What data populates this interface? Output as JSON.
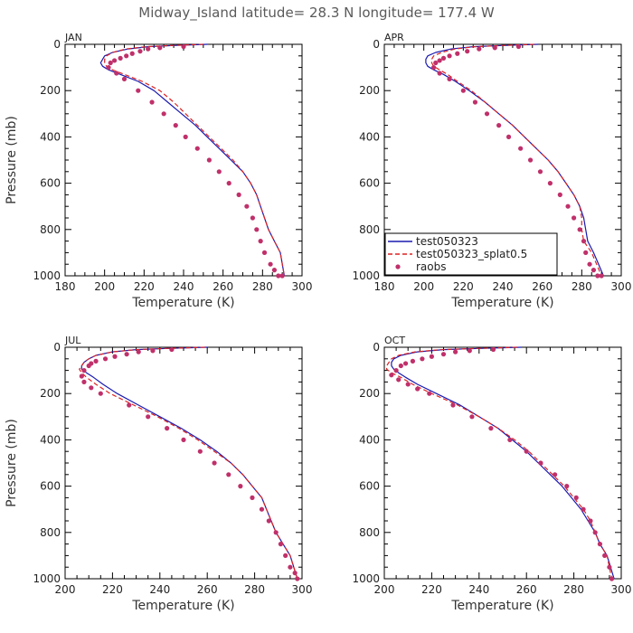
{
  "title": "Midway_Island   latitude= 28.3 N longitude= 177.4 W",
  "legend": {
    "items": [
      {
        "label": "test050323",
        "style": "line",
        "color": "#1a1ab0"
      },
      {
        "label": "test050323_splat0.5",
        "style": "dash",
        "color": "#dd2222"
      },
      {
        "label": "raobs",
        "style": "dot",
        "color": "#c0306a"
      }
    ]
  },
  "chart_data": [
    {
      "type": "line",
      "panel": "JAN",
      "xlabel": "Temperature (K)",
      "ylabel": "Pressure (mb)",
      "xlim": [
        180,
        300
      ],
      "ylim": [
        1000,
        0
      ],
      "xticks": [
        180,
        200,
        220,
        240,
        260,
        280,
        300
      ],
      "yticks": [
        0,
        200,
        400,
        600,
        800,
        1000
      ],
      "series": [
        {
          "style": "line",
          "color": "#1a1ab0",
          "x": [
            252,
            235,
            222,
            212,
            204,
            200,
            199,
            198,
            199,
            202,
            208,
            217,
            225,
            232,
            239,
            246,
            252,
            258,
            264,
            270,
            274,
            277,
            279,
            281,
            283,
            286,
            289,
            291
          ],
          "y": [
            0,
            5,
            10,
            20,
            35,
            50,
            65,
            80,
            95,
            110,
            130,
            160,
            200,
            250,
            300,
            350,
            400,
            450,
            500,
            550,
            600,
            650,
            700,
            750,
            800,
            850,
            900,
            1000
          ]
        },
        {
          "style": "dash",
          "color": "#dd2222",
          "x": [
            250,
            234,
            221,
            211,
            204,
            201,
            200,
            200,
            201,
            204,
            210,
            219,
            228,
            235,
            241,
            247,
            253,
            259,
            265,
            270,
            274,
            277,
            279,
            281,
            283,
            286,
            289,
            291
          ],
          "y": [
            0,
            5,
            10,
            20,
            35,
            50,
            65,
            80,
            95,
            110,
            130,
            160,
            200,
            250,
            300,
            350,
            400,
            450,
            500,
            550,
            600,
            650,
            700,
            750,
            800,
            850,
            900,
            1000
          ]
        },
        {
          "style": "dot",
          "color": "#c0306a",
          "x": [
            240,
            228,
            222,
            218,
            214,
            211,
            208,
            205,
            203,
            202,
            206,
            210,
            217,
            224,
            230,
            236,
            241,
            247,
            253,
            258,
            263,
            268,
            272,
            275,
            277,
            279,
            281,
            284,
            286,
            288,
            290
          ],
          "y": [
            10,
            15,
            20,
            30,
            40,
            50,
            60,
            70,
            80,
            100,
            125,
            150,
            200,
            250,
            300,
            350,
            400,
            450,
            500,
            550,
            600,
            650,
            700,
            750,
            800,
            850,
            900,
            950,
            975,
            1000,
            1000
          ]
        }
      ]
    },
    {
      "type": "line",
      "panel": "APR",
      "xlabel": "Temperature (K)",
      "ylabel": "Pressure (mb)",
      "xlim": [
        180,
        300
      ],
      "ylim": [
        1000,
        0
      ],
      "xticks": [
        180,
        200,
        220,
        240,
        260,
        280,
        300
      ],
      "yticks": [
        0,
        200,
        400,
        600,
        800,
        1000
      ],
      "series": [
        {
          "style": "line",
          "color": "#1a1ab0",
          "x": [
            258,
            240,
            225,
            214,
            206,
            202,
            201,
            201,
            202,
            205,
            210,
            216,
            223,
            231,
            238,
            245,
            251,
            257,
            263,
            268,
            272,
            276,
            279,
            281,
            282,
            283,
            286,
            291
          ],
          "y": [
            0,
            5,
            10,
            20,
            35,
            50,
            65,
            80,
            95,
            110,
            130,
            160,
            200,
            250,
            300,
            350,
            400,
            450,
            500,
            550,
            600,
            650,
            700,
            750,
            800,
            850,
            900,
            1000
          ]
        },
        {
          "style": "dash",
          "color": "#dd2222",
          "x": [
            256,
            240,
            226,
            216,
            209,
            205,
            204,
            204,
            205,
            208,
            212,
            217,
            224,
            231,
            238,
            245,
            251,
            257,
            263,
            268,
            272,
            276,
            279,
            280,
            280,
            281,
            285,
            290
          ],
          "y": [
            0,
            5,
            10,
            20,
            35,
            50,
            65,
            80,
            95,
            110,
            130,
            160,
            200,
            250,
            300,
            350,
            400,
            450,
            500,
            550,
            600,
            650,
            700,
            750,
            800,
            850,
            900,
            1000
          ]
        },
        {
          "style": "dot",
          "color": "#c0306a",
          "x": [
            248,
            236,
            228,
            222,
            217,
            213,
            210,
            208,
            206,
            205,
            208,
            213,
            220,
            226,
            232,
            238,
            243,
            249,
            254,
            259,
            264,
            269,
            273,
            276,
            279,
            281,
            282,
            284,
            286,
            288,
            290
          ],
          "y": [
            10,
            15,
            20,
            30,
            40,
            50,
            60,
            70,
            80,
            100,
            125,
            150,
            200,
            250,
            300,
            350,
            400,
            450,
            500,
            550,
            600,
            650,
            700,
            750,
            800,
            850,
            900,
            950,
            975,
            1000,
            1000
          ]
        }
      ]
    },
    {
      "type": "line",
      "panel": "JUL",
      "xlabel": "Temperature (K)",
      "ylabel": "Pressure (mb)",
      "xlim": [
        200,
        300
      ],
      "ylim": [
        1000,
        0
      ],
      "xticks": [
        200,
        220,
        240,
        260,
        280,
        300
      ],
      "yticks": [
        0,
        200,
        400,
        600,
        800,
        1000
      ],
      "series": [
        {
          "style": "line",
          "color": "#1a1ab0",
          "x": [
            260,
            243,
            230,
            220,
            213,
            210,
            208,
            207,
            207,
            209,
            212,
            216,
            222,
            231,
            240,
            249,
            257,
            264,
            270,
            275,
            279,
            283,
            285,
            287,
            289,
            292,
            295,
            298
          ],
          "y": [
            0,
            5,
            10,
            20,
            35,
            50,
            65,
            80,
            95,
            110,
            130,
            160,
            200,
            250,
            300,
            350,
            400,
            450,
            500,
            550,
            600,
            650,
            700,
            750,
            800,
            850,
            900,
            1000
          ]
        },
        {
          "style": "dash",
          "color": "#dd2222",
          "x": [
            259,
            243,
            230,
            220,
            213,
            210,
            208,
            207,
            206,
            207,
            209,
            213,
            219,
            229,
            239,
            248,
            256,
            263,
            270,
            275,
            279,
            283,
            285,
            287,
            289,
            292,
            295,
            298
          ],
          "y": [
            0,
            5,
            10,
            20,
            35,
            50,
            65,
            80,
            95,
            110,
            130,
            160,
            200,
            250,
            300,
            350,
            400,
            450,
            500,
            550,
            600,
            650,
            700,
            750,
            800,
            850,
            900,
            1000
          ]
        },
        {
          "style": "dot",
          "color": "#c0306a",
          "x": [
            245,
            237,
            231,
            226,
            221,
            217,
            213,
            211,
            210,
            208,
            207,
            208,
            211,
            215,
            227,
            235,
            243,
            250,
            257,
            263,
            269,
            274,
            279,
            283,
            286,
            289,
            291,
            293,
            295,
            297,
            298
          ],
          "y": [
            10,
            15,
            20,
            30,
            40,
            50,
            60,
            70,
            80,
            100,
            125,
            150,
            175,
            200,
            250,
            300,
            350,
            400,
            450,
            500,
            550,
            600,
            650,
            700,
            750,
            800,
            850,
            900,
            950,
            975,
            1000
          ]
        }
      ]
    },
    {
      "type": "line",
      "panel": "OCT",
      "xlabel": "Temperature (K)",
      "ylabel": "Pressure (mb)",
      "xlim": [
        200,
        300
      ],
      "ylim": [
        1000,
        0
      ],
      "xticks": [
        200,
        220,
        240,
        260,
        280,
        300
      ],
      "yticks": [
        0,
        200,
        400,
        600,
        800,
        1000
      ],
      "series": [
        {
          "style": "line",
          "color": "#1a1ab0",
          "x": [
            258,
            240,
            225,
            214,
            207,
            204,
            203,
            203,
            204,
            206,
            209,
            214,
            222,
            232,
            240,
            248,
            254,
            260,
            265,
            270,
            275,
            279,
            283,
            286,
            289,
            291,
            294,
            297
          ],
          "y": [
            0,
            5,
            10,
            20,
            35,
            50,
            65,
            80,
            95,
            110,
            130,
            160,
            200,
            250,
            300,
            350,
            400,
            450,
            500,
            550,
            600,
            650,
            700,
            750,
            800,
            850,
            900,
            1000
          ]
        },
        {
          "style": "dash",
          "color": "#dd2222",
          "x": [
            256,
            239,
            224,
            213,
            206,
            203,
            202,
            201,
            201,
            203,
            207,
            212,
            220,
            231,
            240,
            248,
            255,
            261,
            266,
            271,
            276,
            280,
            284,
            287,
            289,
            291,
            294,
            296
          ],
          "y": [
            0,
            5,
            10,
            20,
            35,
            50,
            65,
            80,
            95,
            110,
            130,
            160,
            200,
            250,
            300,
            350,
            400,
            450,
            500,
            550,
            600,
            650,
            700,
            750,
            800,
            850,
            900,
            1000
          ]
        },
        {
          "style": "dot",
          "color": "#c0306a",
          "x": [
            246,
            236,
            230,
            225,
            220,
            216,
            212,
            209,
            207,
            205,
            203,
            206,
            210,
            214,
            219,
            229,
            237,
            245,
            253,
            260,
            266,
            272,
            277,
            281,
            284,
            287,
            289,
            291,
            293,
            295,
            296
          ],
          "y": [
            10,
            15,
            20,
            30,
            40,
            50,
            60,
            70,
            80,
            100,
            120,
            140,
            160,
            180,
            200,
            250,
            300,
            350,
            400,
            450,
            500,
            550,
            600,
            650,
            700,
            750,
            800,
            850,
            900,
            950,
            1000
          ]
        }
      ]
    }
  ]
}
